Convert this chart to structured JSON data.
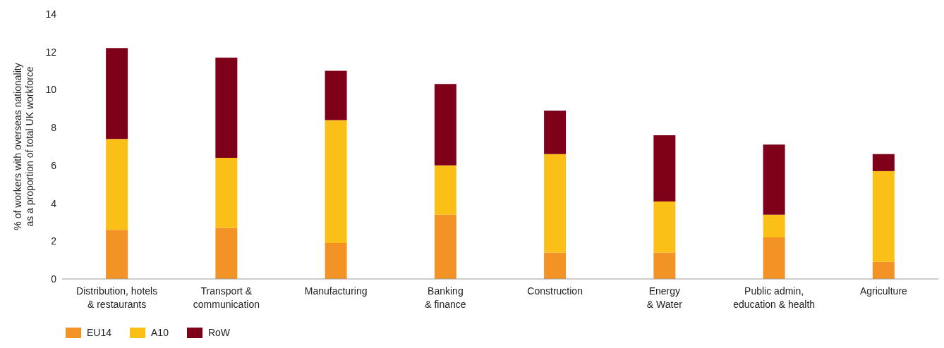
{
  "chart_data": {
    "type": "bar",
    "stacked": true,
    "ylabel": "% of workers with overseas nationality\nas a proportion of total UK workforce",
    "categories": [
      "Distribution, hotels\n& restaurants",
      "Transport &\ncommunication",
      "Manufacturing",
      "Banking\n& finance",
      "Construction",
      "Energy\n& Water",
      "Public admin,\neducation & health",
      "Agriculture"
    ],
    "series": [
      {
        "name": "EU14",
        "color": "#f39325",
        "values": [
          2.6,
          2.7,
          1.9,
          3.4,
          1.4,
          1.4,
          2.2,
          0.9
        ]
      },
      {
        "name": "A10",
        "color": "#fbc018",
        "values": [
          4.8,
          3.7,
          6.5,
          2.6,
          5.2,
          2.7,
          1.2,
          4.8
        ]
      },
      {
        "name": "RoW",
        "color": "#7f0019",
        "values": [
          4.8,
          5.3,
          2.6,
          4.3,
          2.3,
          3.5,
          3.7,
          0.9
        ]
      }
    ],
    "ylim": [
      0,
      14
    ],
    "yticks": [
      0,
      2,
      4,
      6,
      8,
      10,
      12,
      14
    ],
    "grid": false,
    "legend": "bottom left"
  }
}
